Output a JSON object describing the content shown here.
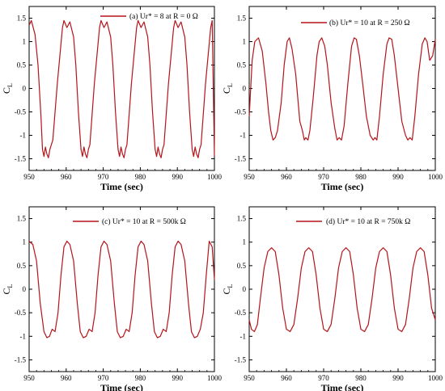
{
  "series_color": "#b5141a",
  "chart_data": [
    {
      "type": "line",
      "legend": "(a) Ur* = 8 at R = 0 Ω",
      "xlabel": "Time (sec)",
      "ylabel": "C",
      "ylabel_sub": "L",
      "xlim": [
        950,
        1000
      ],
      "ylim": [
        -1.75,
        1.75
      ],
      "xticks": [
        "950",
        "960",
        "970",
        "980",
        "990",
        "1000"
      ],
      "yticks": [
        "1.5",
        "1",
        "0.5",
        "0",
        "-0.5",
        "-1",
        "-1.5"
      ],
      "series": [
        {
          "x": [
            950,
            950.6,
            951.6,
            952.4,
            953.2,
            953.6,
            954.0,
            954.4,
            954.8,
            955.2,
            955.6,
            956.0,
            956.4,
            957.6,
            959.0,
            959.4,
            960.2,
            961.0,
            962.0,
            962.6,
            963.3,
            964.0,
            964.4,
            964.8,
            965.2,
            965.6,
            966.0,
            966.4,
            967.6,
            969.0,
            969.4,
            970.2,
            971.0,
            972.0,
            972.6,
            973.3,
            974.0,
            974.4,
            974.8,
            975.2,
            975.6,
            976.0,
            976.4,
            977.6,
            979.0,
            979.4,
            980.2,
            981.0,
            982.0,
            982.6,
            983.3,
            984.0,
            984.4,
            984.8,
            985.2,
            985.6,
            986.0,
            986.4,
            987.6,
            989.0,
            989.4,
            990.2,
            991.0,
            992.0,
            992.6,
            993.3,
            994.0,
            994.4,
            994.8,
            995.2,
            995.6,
            996.0,
            996.4,
            997.6,
            999.0,
            999.4,
            1000
          ],
          "y": [
            1.35,
            1.45,
            1.15,
            0.5,
            -0.6,
            -1.3,
            -1.45,
            -1.25,
            -1.4,
            -1.48,
            -1.3,
            -1.2,
            -1.1,
            0.1,
            1.3,
            1.45,
            1.3,
            1.42,
            1.1,
            0.5,
            -0.5,
            -1.3,
            -1.45,
            -1.25,
            -1.4,
            -1.48,
            -1.3,
            -1.2,
            0.1,
            1.3,
            1.45,
            1.3,
            1.42,
            1.1,
            0.5,
            -0.5,
            -1.3,
            -1.45,
            -1.25,
            -1.4,
            -1.48,
            -1.3,
            -1.2,
            0.1,
            1.3,
            1.45,
            1.3,
            1.42,
            1.1,
            0.5,
            -0.5,
            -1.3,
            -1.45,
            -1.25,
            -1.4,
            -1.48,
            -1.3,
            -1.2,
            0.1,
            1.3,
            1.45,
            1.3,
            1.42,
            1.1,
            0.5,
            -0.5,
            -1.3,
            -1.45,
            -1.25,
            -1.4,
            -1.48,
            -1.3,
            -1.2,
            0.1,
            1.3,
            1.45,
            -1.45
          ]
        }
      ]
    },
    {
      "type": "line",
      "legend": "(b) Ur* = 10 at R = 250 Ω",
      "xlabel": "Time (sec)",
      "ylabel": "C",
      "ylabel_sub": "L",
      "xlim": [
        950,
        1000
      ],
      "ylim": [
        -1.75,
        1.75
      ],
      "xticks": [
        "950",
        "960",
        "970",
        "980",
        "990",
        "1000"
      ],
      "yticks": [
        "1.5",
        "1",
        "0.5",
        "0",
        "-0.5",
        "-1",
        "-1.5"
      ],
      "series": [
        {
          "x": [
            950,
            950.8,
            951.5,
            952.5,
            953.5,
            954.5,
            955.2,
            955.8,
            956.4,
            957.0,
            957.6,
            958.6,
            959.4,
            960.2,
            960.8,
            961.5,
            962.5,
            963.6,
            964.3,
            964.8,
            965.2,
            965.8,
            966.3,
            967.2,
            968.2,
            968.8,
            969.5,
            970.3,
            971.0,
            972.0,
            973.0,
            973.6,
            974.2,
            974.8,
            975.5,
            976.5,
            977.5,
            978.2,
            978.8,
            979.6,
            980.5,
            981.5,
            982.5,
            983.3,
            983.8,
            984.3,
            985.0,
            986.0,
            987.0,
            987.6,
            988.3,
            989.0,
            990.0,
            991.0,
            992.0,
            992.6,
            993.2,
            993.8,
            994.5,
            995.5,
            996.5,
            997.2,
            997.8,
            998.5,
            999.3,
            1000
          ],
          "y": [
            -0.6,
            0.6,
            1.0,
            1.08,
            0.8,
            0.1,
            -0.5,
            -0.9,
            -1.1,
            -1.05,
            -0.9,
            -0.3,
            0.5,
            1.0,
            1.08,
            0.85,
            0.3,
            -0.7,
            -0.9,
            -1.1,
            -1.05,
            -1.1,
            -0.9,
            -0.2,
            0.7,
            1.0,
            1.08,
            0.9,
            0.5,
            -0.3,
            -0.85,
            -1.1,
            -1.05,
            -1.1,
            -0.8,
            0.1,
            0.9,
            1.08,
            1.05,
            0.7,
            0.1,
            -0.6,
            -1.0,
            -1.1,
            -1.05,
            -1.1,
            -0.6,
            0.3,
            0.95,
            1.08,
            1.05,
            0.7,
            0.0,
            -0.7,
            -1.0,
            -1.1,
            -1.05,
            -1.1,
            -0.6,
            0.3,
            0.95,
            1.08,
            1.0,
            0.6,
            0.7,
            1.05
          ]
        }
      ]
    },
    {
      "type": "line",
      "legend": "(c) Ur* = 10 at R = 500k  Ω",
      "xlabel": "Time (sec)",
      "ylabel": "C",
      "ylabel_sub": "L",
      "xlim": [
        950,
        1000
      ],
      "ylim": [
        -1.75,
        1.75
      ],
      "xticks": [
        "950",
        "960",
        "970",
        "980",
        "990",
        "1000"
      ],
      "yticks": [
        "1.5",
        "1",
        "0.5",
        "0",
        "-0.5",
        "-1",
        "-1.5"
      ],
      "series": [
        {
          "x": [
            950,
            951.0,
            952.0,
            953.0,
            954.0,
            954.8,
            955.5,
            956.2,
            957.0,
            957.8,
            958.6,
            959.4,
            960.2,
            961.0,
            962.0,
            963.0,
            963.8,
            964.6,
            965.4,
            966.2,
            967.0,
            967.8,
            968.6,
            969.4,
            970.2,
            971.0,
            972.0,
            973.0,
            973.8,
            974.6,
            975.4,
            976.2,
            977.0,
            977.8,
            978.6,
            979.4,
            980.2,
            981.0,
            982.0,
            983.0,
            983.8,
            984.6,
            985.4,
            986.2,
            987.0,
            987.8,
            988.6,
            989.4,
            990.2,
            991.0,
            992.0,
            993.0,
            993.8,
            994.6,
            995.4,
            996.2,
            997.0,
            997.8,
            998.6,
            999.4,
            1000
          ],
          "y": [
            1.02,
            0.95,
            0.6,
            -0.3,
            -0.9,
            -1.03,
            -1.0,
            -0.85,
            -0.9,
            -0.5,
            0.3,
            0.9,
            1.02,
            0.95,
            0.6,
            -0.3,
            -0.9,
            -1.03,
            -1.0,
            -0.85,
            -0.9,
            -0.5,
            0.3,
            0.9,
            1.02,
            0.95,
            0.6,
            -0.3,
            -0.9,
            -1.03,
            -1.0,
            -0.85,
            -0.9,
            -0.5,
            0.3,
            0.9,
            1.02,
            0.95,
            0.6,
            -0.3,
            -0.9,
            -1.03,
            -1.0,
            -0.85,
            -0.9,
            -0.5,
            0.3,
            0.9,
            1.02,
            0.95,
            0.6,
            -0.3,
            -0.9,
            -1.03,
            -1.0,
            -0.85,
            -0.5,
            0.3,
            1.02,
            0.9,
            0.2
          ]
        }
      ]
    },
    {
      "type": "line",
      "legend": "(d) Ur* = 10 at R = 750k  Ω",
      "xlabel": "Time (sec)",
      "ylabel": "C",
      "ylabel_sub": "L",
      "xlim": [
        950,
        1000
      ],
      "ylim": [
        -1.75,
        1.75
      ],
      "xticks": [
        "950",
        "960",
        "970",
        "980",
        "990",
        "1000"
      ],
      "yticks": [
        "1.5",
        "1",
        "0.5",
        "0",
        "-0.5",
        "-1",
        "-1.5"
      ],
      "series": [
        {
          "x": [
            950,
            950.6,
            951.4,
            952.2,
            953.0,
            954.0,
            955.0,
            956.0,
            957.0,
            958.0,
            959.0,
            960.0,
            961.0,
            962.0,
            963.0,
            964.0,
            965.0,
            966.0,
            967.0,
            968.0,
            969.0,
            970.0,
            971.0,
            972.0,
            973.0,
            974.0,
            975.0,
            976.0,
            977.0,
            978.0,
            979.0,
            980.0,
            981.0,
            982.0,
            983.0,
            984.0,
            985.0,
            986.0,
            987.0,
            988.0,
            989.0,
            990.0,
            991.0,
            992.0,
            993.0,
            994.0,
            995.0,
            996.0,
            997.0,
            998.0,
            999.0,
            1000
          ],
          "y": [
            -0.65,
            -0.85,
            -0.9,
            -0.75,
            -0.2,
            0.45,
            0.8,
            0.88,
            0.8,
            0.3,
            -0.4,
            -0.85,
            -0.9,
            -0.75,
            -0.2,
            0.45,
            0.8,
            0.88,
            0.8,
            0.3,
            -0.4,
            -0.85,
            -0.9,
            -0.75,
            -0.2,
            0.45,
            0.8,
            0.88,
            0.8,
            0.3,
            -0.4,
            -0.85,
            -0.9,
            -0.75,
            -0.2,
            0.45,
            0.8,
            0.88,
            0.8,
            0.3,
            -0.4,
            -0.85,
            -0.9,
            -0.75,
            -0.2,
            0.45,
            0.8,
            0.88,
            0.8,
            0.3,
            -0.4,
            -0.65
          ]
        }
      ]
    }
  ]
}
